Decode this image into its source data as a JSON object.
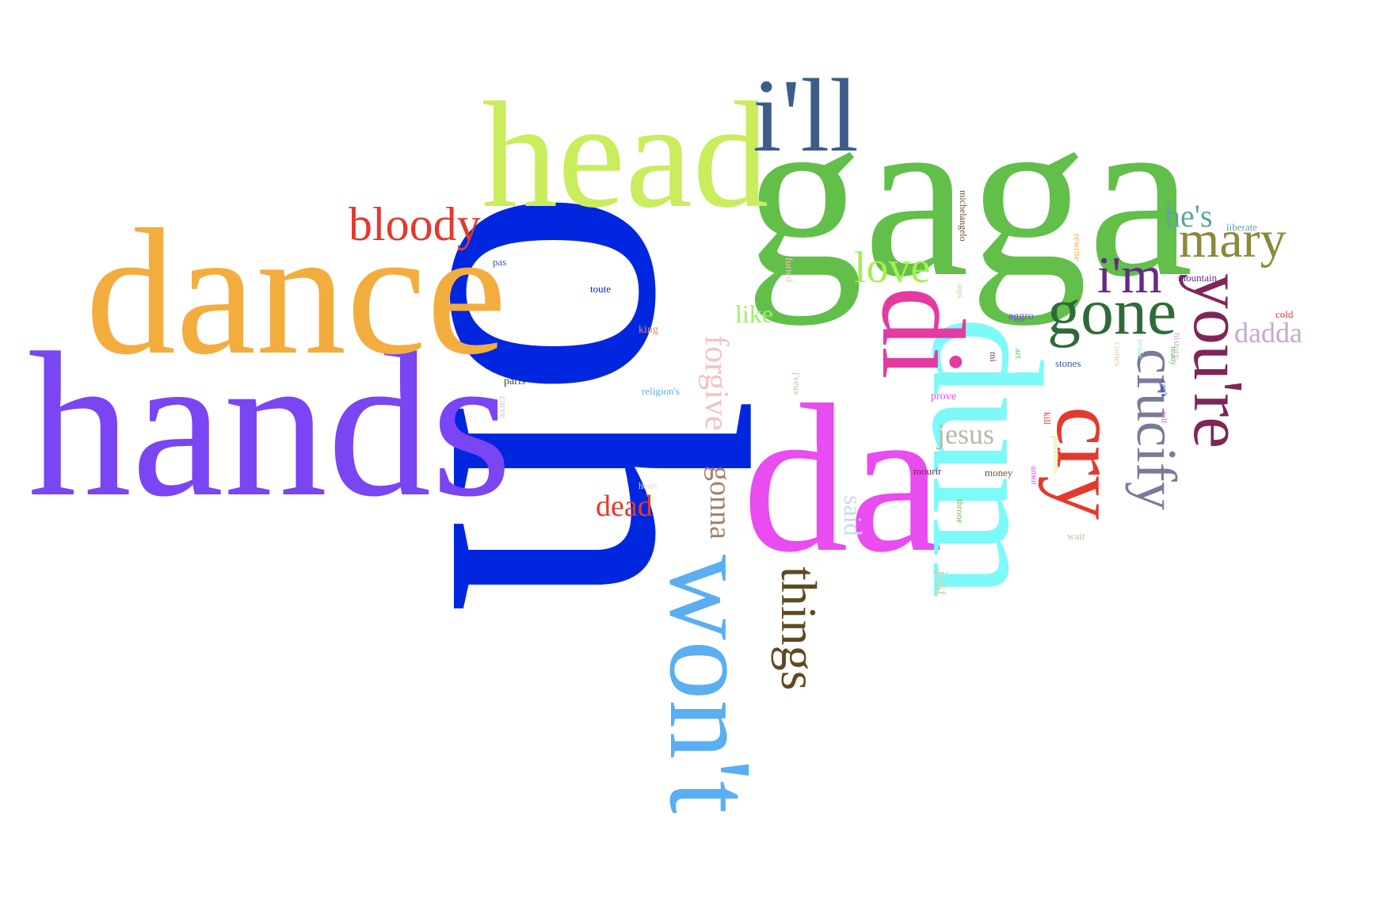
{
  "words": [
    {
      "text": "oh",
      "color": "#0026e0"
    },
    {
      "text": "hands",
      "color": "#7a45f3"
    },
    {
      "text": "gaga",
      "color": "#62bf4a"
    },
    {
      "text": "dance",
      "color": "#f3ad3f"
    },
    {
      "text": "head",
      "color": "#c9ed5d"
    },
    {
      "text": "da",
      "color": "#e94cf0"
    },
    {
      "text": "dum",
      "color": "#7ef9f9"
    },
    {
      "text": "won't",
      "color": "#5aaef2"
    },
    {
      "text": "di",
      "color": "#e53aa2"
    },
    {
      "text": "i'll",
      "color": "#3c5c8a"
    },
    {
      "text": "bloody",
      "color": "#e23a2c"
    },
    {
      "text": "gone",
      "color": "#2f6b39"
    },
    {
      "text": "you're",
      "color": "#7e2658"
    },
    {
      "text": "mary",
      "color": "#8a8a3b"
    },
    {
      "text": "cry",
      "color": "#e43a2c"
    },
    {
      "text": "crucify",
      "color": "#7c7a9a"
    },
    {
      "text": "i'm",
      "color": "#66288a"
    },
    {
      "text": "love",
      "color": "#a6ef4f"
    },
    {
      "text": "things",
      "color": "#5e4a22"
    },
    {
      "text": "dadda",
      "color": "#c2a9cf"
    },
    {
      "text": "he's",
      "color": "#5ba59d"
    },
    {
      "text": "forgive",
      "color": "#f4c2c2"
    },
    {
      "text": "gonna",
      "color": "#a3826b"
    },
    {
      "text": "jesus",
      "color": "#b8b8a6"
    },
    {
      "text": "dead",
      "color": "#e23a2c"
    },
    {
      "text": "like",
      "color": "#9ef06a"
    },
    {
      "text": "said",
      "color": "#c7dce6"
    },
    {
      "text": "just",
      "color": "#e8cf97"
    },
    {
      "text": "pas",
      "color": "#3a5d99"
    },
    {
      "text": "toute",
      "color": "#0026e0"
    },
    {
      "text": "king",
      "color": "#d2906c"
    },
    {
      "text": "paris",
      "color": "#2f5230"
    },
    {
      "text": "religion's",
      "color": "#5aaef2"
    },
    {
      "text": "carve",
      "color": "#c8c8c8"
    },
    {
      "text": "heart",
      "color": "#dddddd"
    },
    {
      "text": "furied",
      "color": "#f4c2c2"
    },
    {
      "text": "j'veux",
      "color": "#c8b99b"
    },
    {
      "text": "michelangelo",
      "color": "#5e4a22"
    },
    {
      "text": "tops",
      "color": "#9ef06a"
    },
    {
      "text": "aggro",
      "color": "#7a45f3"
    },
    {
      "text": "mi",
      "color": "#7e2658"
    },
    {
      "text": "art",
      "color": "#62bf4a"
    },
    {
      "text": "stones",
      "color": "#3a5d99"
    },
    {
      "text": "prove",
      "color": "#e94cf0"
    },
    {
      "text": "kill",
      "color": "#e43a2c"
    },
    {
      "text": "mourir",
      "color": "#7e2658"
    },
    {
      "text": "money",
      "color": "#6e5a2a"
    },
    {
      "text": "amor",
      "color": "#e94cf0"
    },
    {
      "text": "throne",
      "color": "#62bf4a"
    },
    {
      "text": "punktious",
      "color": "#e8e07a"
    },
    {
      "text": "wait",
      "color": "#c8b99b"
    },
    {
      "text": "rewrite",
      "color": "#f3ad3f"
    },
    {
      "text": "liberate",
      "color": "#5ba59d"
    },
    {
      "text": "mountain",
      "color": "#66288a"
    },
    {
      "text": "seule",
      "color": "#9fe8e8"
    },
    {
      "text": "comes",
      "color": "#e8cf97"
    },
    {
      "text": "history",
      "color": "#c2a9cf"
    },
    {
      "text": "ready",
      "color": "#62bf4a"
    },
    {
      "text": "can't",
      "color": "#0026e0"
    },
    {
      "text": "tell",
      "color": "#e94cf0"
    },
    {
      "text": "cold",
      "color": "#e23a2c"
    }
  ]
}
